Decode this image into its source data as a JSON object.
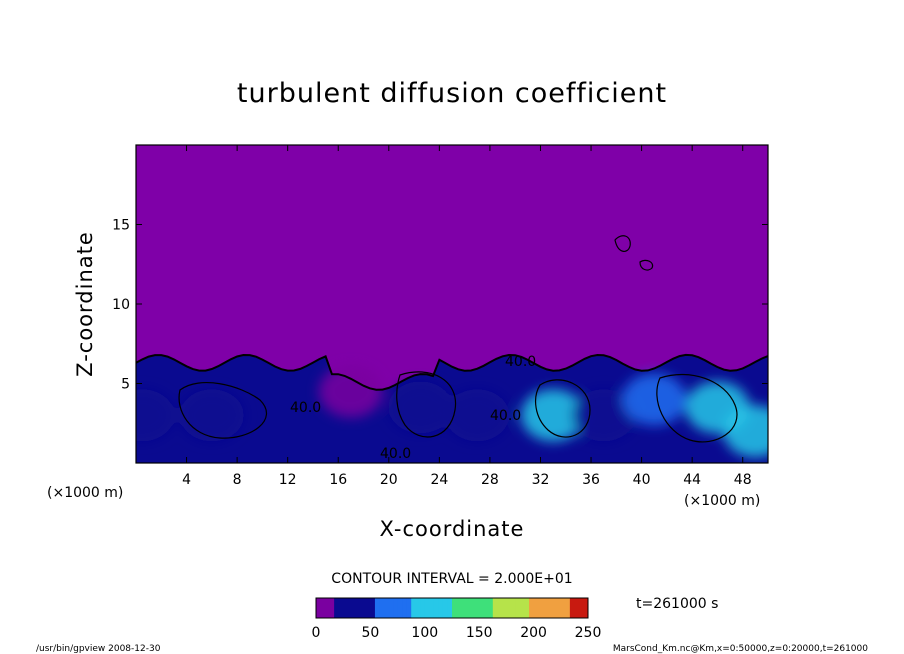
{
  "chart_data": {
    "type": "heatmap",
    "title": "turbulent diffusion coefficient",
    "xlabel": "X-coordinate",
    "ylabel": "Z-coordinate",
    "x_unit": "(×1000 m)",
    "z_unit": "(×1000 m)",
    "xlim": [
      0,
      50
    ],
    "ylim": [
      0,
      20
    ],
    "x_ticks": [
      4,
      8,
      12,
      16,
      20,
      24,
      28,
      32,
      36,
      40,
      44,
      48
    ],
    "y_ticks": [
      5,
      10,
      15
    ],
    "contour_interval_label": "CONTOUR INTERVAL = 2.000E+01",
    "contour_labels": [
      "40.0",
      "40.0",
      "40.0",
      "40.0"
    ],
    "colorbar": {
      "min": 0,
      "max": 250,
      "ticks": [
        0,
        50,
        100,
        150,
        200,
        250
      ],
      "colors": [
        "#7a00a0",
        "#0a0a90",
        "#1f6ff0",
        "#27c8e8",
        "#3ee07a",
        "#b6e34a",
        "#f0a040",
        "#c81a10"
      ]
    },
    "background_color": "#7f00a8",
    "turbulent_layer_top_km": 6.3,
    "regions": [
      {
        "x": 0.5,
        "z": 3.0,
        "value": 40
      },
      {
        "x": 6,
        "z": 3.0,
        "value": 30
      },
      {
        "x": 17,
        "z": 4.5,
        "value": 5
      },
      {
        "x": 22.5,
        "z": 3.5,
        "value": 20
      },
      {
        "x": 27,
        "z": 3.0,
        "value": 40
      },
      {
        "x": 33,
        "z": 3.0,
        "value": 100
      },
      {
        "x": 37,
        "z": 3.0,
        "value": 40
      },
      {
        "x": 41,
        "z": 4.0,
        "value": 70
      },
      {
        "x": 46,
        "z": 3.5,
        "value": 120
      },
      {
        "x": 49,
        "z": 2.0,
        "value": 90
      }
    ],
    "time_label": "t=261000 s"
  },
  "footer": {
    "left": "/usr/bin/gpview   2008-12-30",
    "right": "MarsCond_Km.nc@Km,x=0:50000,z=0:20000,t=261000"
  }
}
